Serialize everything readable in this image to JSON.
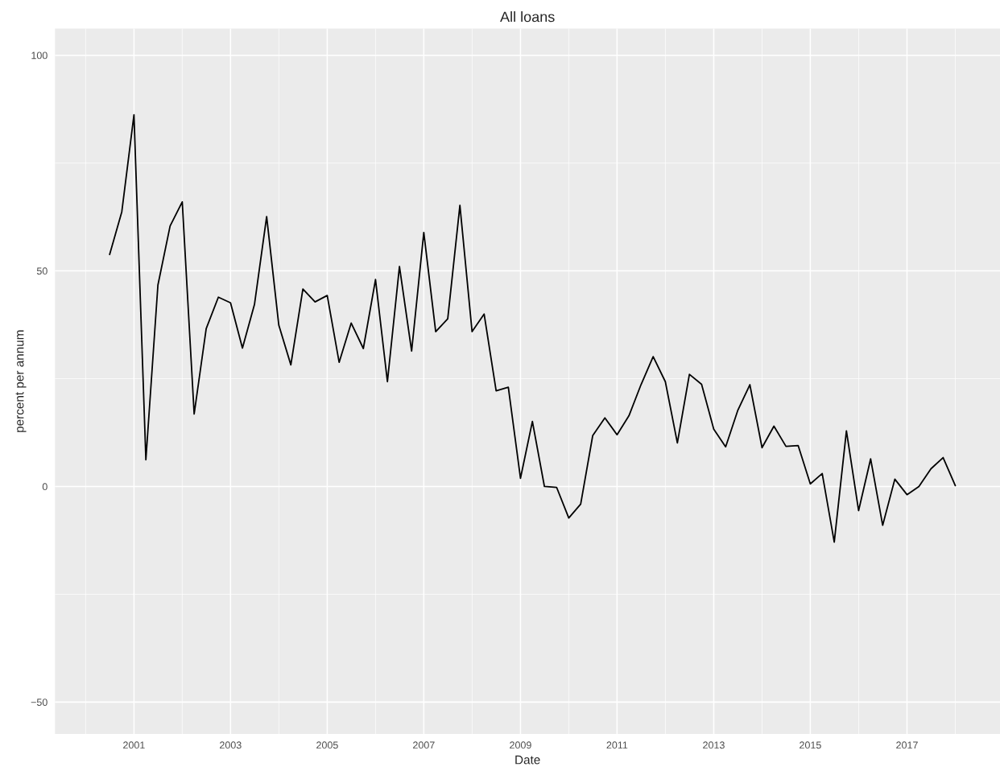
{
  "chart_data": {
    "type": "line",
    "title": "All loans",
    "xlabel": "Date",
    "ylabel": "percent per annum",
    "x": [
      "2000-07-01",
      "2000-10-01",
      "2001-01-01",
      "2001-04-01",
      "2001-07-01",
      "2001-10-01",
      "2002-01-01",
      "2002-04-01",
      "2002-07-01",
      "2002-10-01",
      "2003-01-01",
      "2003-04-01",
      "2003-07-01",
      "2003-10-01",
      "2004-01-01",
      "2004-04-01",
      "2004-07-01",
      "2004-10-01",
      "2005-01-01",
      "2005-04-01",
      "2005-07-01",
      "2005-10-01",
      "2006-01-01",
      "2006-04-01",
      "2006-07-01",
      "2006-10-01",
      "2007-01-01",
      "2007-04-01",
      "2007-07-01",
      "2007-10-01",
      "2008-01-01",
      "2008-04-01",
      "2008-07-01",
      "2008-10-01",
      "2009-01-01",
      "2009-04-01",
      "2009-07-01",
      "2009-10-01",
      "2010-01-01",
      "2010-04-01",
      "2010-07-01",
      "2010-10-01",
      "2011-01-01",
      "2011-04-01",
      "2011-07-01",
      "2011-10-01",
      "2012-01-01",
      "2012-04-01",
      "2012-07-01",
      "2012-10-01",
      "2013-01-01",
      "2013-04-01",
      "2013-07-01",
      "2013-10-01",
      "2014-01-01",
      "2014-04-01",
      "2014-07-01",
      "2014-10-01",
      "2015-01-01",
      "2015-04-01",
      "2015-07-01",
      "2015-10-01",
      "2016-01-01",
      "2016-04-01",
      "2016-07-01",
      "2016-10-01",
      "2017-01-01",
      "2017-04-01",
      "2017-07-01",
      "2017-10-01",
      "2018-01-01"
    ],
    "series": [
      {
        "color": "#000000",
        "values": [
          53.8,
          63.7,
          86.2,
          6.2,
          46.7,
          60.4,
          66.0,
          16.8,
          36.6,
          43.9,
          42.6,
          32.1,
          42.2,
          62.6,
          37.4,
          28.2,
          45.8,
          42.8,
          44.3,
          28.8,
          37.9,
          32.0,
          48.0,
          24.3,
          51.0,
          31.4,
          58.9,
          35.9,
          38.9,
          65.2,
          35.9,
          40.0,
          22.2,
          23.0,
          1.9,
          15.1,
          0,
          -0.2,
          -7.3,
          -4.1,
          11.8,
          15.9,
          12.0,
          16.4,
          23.6,
          30.1,
          24.3,
          10.1,
          26.0,
          23.7,
          13.3,
          9.2,
          17.6,
          23.6,
          9.0,
          14.0,
          9.3,
          9.5,
          0.6,
          3.0,
          -12.9,
          12.9,
          -5.6,
          6.4,
          -9.0,
          1.7,
          -1.9,
          0,
          4.1,
          6.7,
          0.2
        ]
      }
    ],
    "xlim": [
      "1999-05-15",
      "2018-12-05"
    ],
    "xticks": [
      {
        "value": "2001-01-01",
        "label": "2001"
      },
      {
        "value": "2003-01-01",
        "label": "2003"
      },
      {
        "value": "2005-01-01",
        "label": "2005"
      },
      {
        "value": "2007-01-01",
        "label": "2007"
      },
      {
        "value": "2009-01-01",
        "label": "2009"
      },
      {
        "value": "2011-01-01",
        "label": "2011"
      },
      {
        "value": "2013-01-01",
        "label": "2013"
      },
      {
        "value": "2015-01-01",
        "label": "2015"
      },
      {
        "value": "2017-01-01",
        "label": "2017"
      }
    ],
    "ylim": [
      -57.4,
      106.2
    ],
    "yticks": [
      {
        "value": -50,
        "label": "−50"
      },
      0,
      50,
      100
    ],
    "grid": true,
    "line_style": "solid",
    "marker": "none"
  }
}
